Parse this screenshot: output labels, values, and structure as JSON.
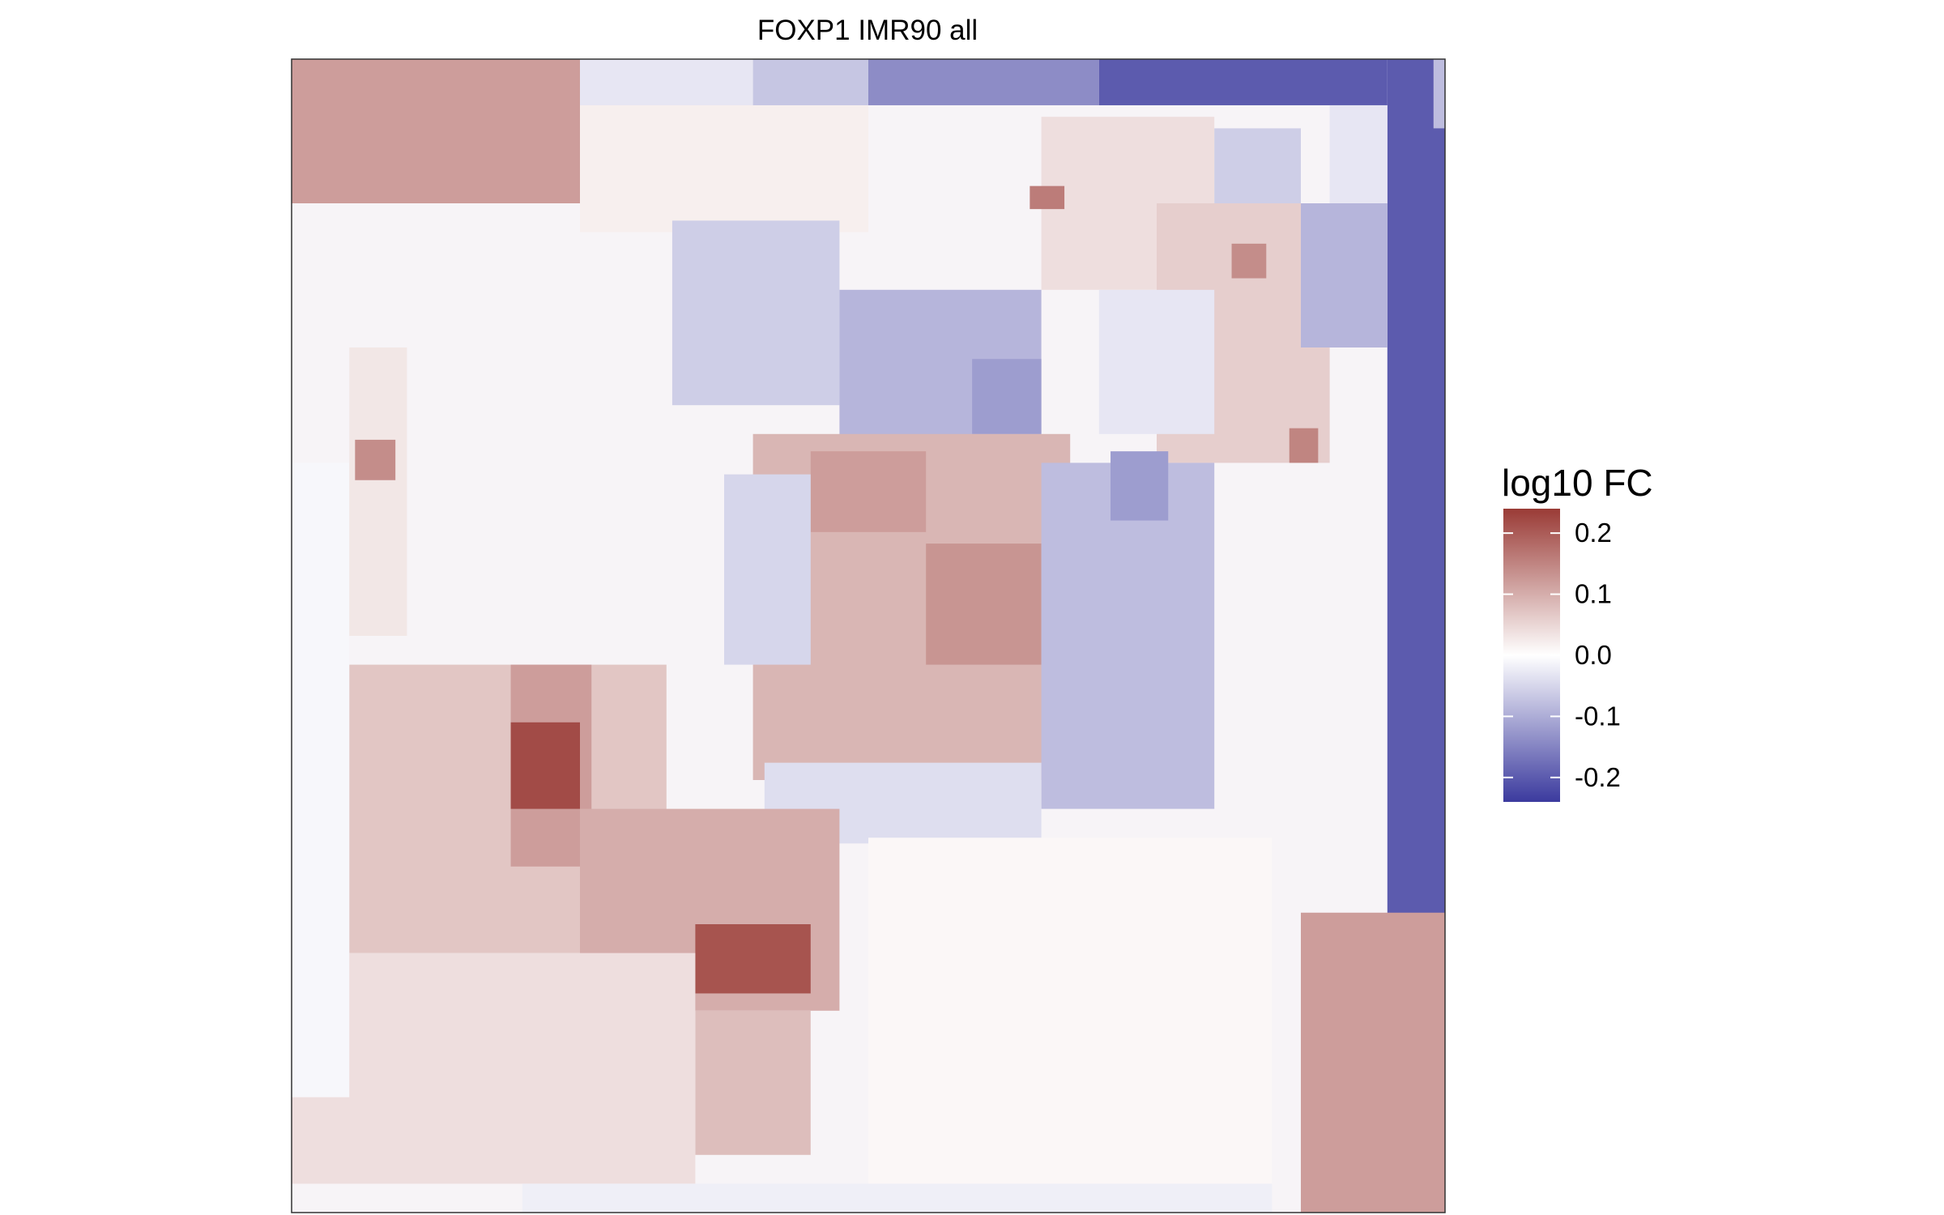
{
  "chart_data": {
    "type": "heatmap",
    "title": "FOXP1 IMR90 all",
    "xlabel": "",
    "ylabel": "",
    "grid": false,
    "legend": {
      "title": "log10 FC",
      "position": "right",
      "ticks": [
        0.2,
        0.1,
        0.0,
        -0.1,
        -0.2
      ],
      "tick_labels": [
        "0.2",
        "0.1",
        "0.0",
        "-0.1",
        "-0.2"
      ],
      "range": [
        -0.24,
        0.24
      ],
      "colors": {
        "low": "#3b3a9e",
        "mid": "#ffffff",
        "high": "#9a3b36"
      }
    },
    "domain": [
      0,
      20
    ],
    "regions": [
      {
        "x": [
          0,
          5
        ],
        "y": [
          0,
          2.5
        ],
        "value": 0.12
      },
      {
        "x": [
          5,
          10
        ],
        "y": [
          0,
          3
        ],
        "value": 0.02
      },
      {
        "x": [
          5,
          8
        ],
        "y": [
          0,
          0.8
        ],
        "value": -0.03
      },
      {
        "x": [
          8,
          10
        ],
        "y": [
          0,
          0.8
        ],
        "value": -0.07
      },
      {
        "x": [
          10,
          14
        ],
        "y": [
          0,
          0.8
        ],
        "value": -0.14
      },
      {
        "x": [
          14,
          19
        ],
        "y": [
          0,
          0.8
        ],
        "value": -0.2
      },
      {
        "x": [
          19,
          20
        ],
        "y": [
          0,
          20
        ],
        "value": -0.2
      },
      {
        "x": [
          19.8,
          20
        ],
        "y": [
          0,
          1.2
        ],
        "value": -0.08
      },
      {
        "x": [
          18,
          19
        ],
        "y": [
          0.8,
          2.5
        ],
        "value": -0.03
      },
      {
        "x": [
          13,
          16
        ],
        "y": [
          1,
          4
        ],
        "value": 0.04
      },
      {
        "x": [
          15,
          18
        ],
        "y": [
          2.5,
          7
        ],
        "value": 0.06
      },
      {
        "x": [
          14,
          16
        ],
        "y": [
          4,
          6.5
        ],
        "value": -0.03
      },
      {
        "x": [
          16,
          17.5
        ],
        "y": [
          1.2,
          2.5
        ],
        "value": -0.06
      },
      {
        "x": [
          17.5,
          19
        ],
        "y": [
          2.5,
          5
        ],
        "value": -0.09
      },
      {
        "x": [
          6.6,
          9.5
        ],
        "y": [
          2.8,
          6
        ],
        "value": -0.06
      },
      {
        "x": [
          9.5,
          13
        ],
        "y": [
          4,
          7
        ],
        "value": -0.09
      },
      {
        "x": [
          11.8,
          13
        ],
        "y": [
          5.2,
          6.5
        ],
        "value": -0.12
      },
      {
        "x": [
          8,
          13.5
        ],
        "y": [
          6.5,
          12.5
        ],
        "value": 0.09
      },
      {
        "x": [
          9,
          11
        ],
        "y": [
          6.8,
          8.2
        ],
        "value": 0.12
      },
      {
        "x": [
          11,
          13
        ],
        "y": [
          8.4,
          10.5
        ],
        "value": 0.13
      },
      {
        "x": [
          13,
          16
        ],
        "y": [
          7,
          13
        ],
        "value": -0.08
      },
      {
        "x": [
          14.2,
          15.2
        ],
        "y": [
          6.8,
          8
        ],
        "value": -0.12
      },
      {
        "x": [
          7.5,
          9
        ],
        "y": [
          7.2,
          10.5
        ],
        "value": -0.05
      },
      {
        "x": [
          8.2,
          13
        ],
        "y": [
          12.2,
          13.6
        ],
        "value": -0.04
      },
      {
        "x": [
          1,
          6.5
        ],
        "y": [
          10.5,
          15.5
        ],
        "value": 0.07
      },
      {
        "x": [
          3.8,
          5.2
        ],
        "y": [
          10.5,
          14
        ],
        "value": 0.12
      },
      {
        "x": [
          3.8,
          5
        ],
        "y": [
          11.5,
          13
        ],
        "value": 0.22
      },
      {
        "x": [
          5,
          9.5
        ],
        "y": [
          13,
          16.5
        ],
        "value": 0.1
      },
      {
        "x": [
          7,
          9
        ],
        "y": [
          15,
          16.2
        ],
        "value": 0.21
      },
      {
        "x": [
          7,
          9
        ],
        "y": [
          16.5,
          19
        ],
        "value": 0.08
      },
      {
        "x": [
          0,
          7
        ],
        "y": [
          15.5,
          19.5
        ],
        "value": 0.04
      },
      {
        "x": [
          0,
          1
        ],
        "y": [
          7,
          18
        ],
        "value": -0.01
      },
      {
        "x": [
          1,
          2
        ],
        "y": [
          5,
          10
        ],
        "value": 0.03
      },
      {
        "x": [
          1.1,
          1.8
        ],
        "y": [
          6.6,
          7.3
        ],
        "value": 0.14
      },
      {
        "x": [
          12.7,
          13.5
        ],
        "y": [
          18.4,
          19.2
        ],
        "value": 0.14
      },
      {
        "x": [
          17.5,
          20
        ],
        "y": [
          14.8,
          20
        ],
        "value": 0.12
      },
      {
        "x": [
          4,
          17
        ],
        "y": [
          19.5,
          20
        ],
        "value": -0.02
      },
      {
        "x": [
          10,
          17
        ],
        "y": [
          13.5,
          19.5
        ],
        "value": 0.01
      },
      {
        "x": [
          12.8,
          13.4
        ],
        "y": [
          2.2,
          2.6
        ],
        "value": 0.16
      },
      {
        "x": [
          16.3,
          16.9
        ],
        "y": [
          3.2,
          3.8
        ],
        "value": 0.14
      },
      {
        "x": [
          17.3,
          17.8
        ],
        "y": [
          6.4,
          7
        ],
        "value": 0.15
      }
    ]
  }
}
